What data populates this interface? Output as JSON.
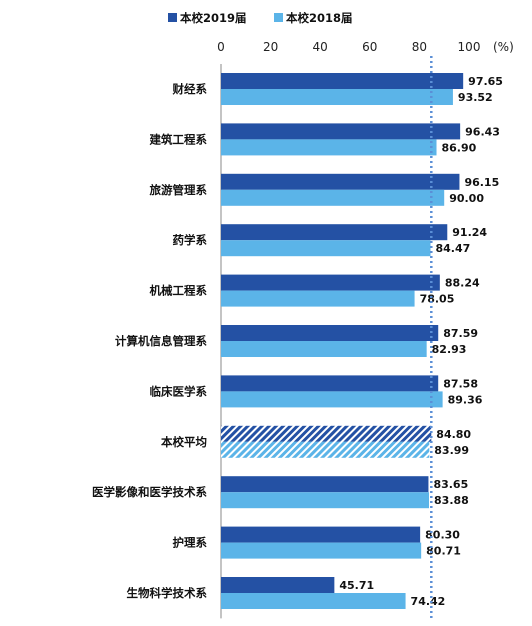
{
  "chart_data": {
    "type": "bar",
    "orientation": "horizontal",
    "unit_label": "(%)",
    "xlim": [
      0,
      100
    ],
    "ticks": [
      "0",
      "20",
      "40",
      "60",
      "80",
      "100"
    ],
    "legend_position": "top",
    "colors": {
      "2019": "#2451a4",
      "2018": "#5bb4e8",
      "reference_line": "#5b8fd6"
    },
    "series": [
      {
        "name": "本校2019届",
        "color": "#2451a4"
      },
      {
        "name": "本校2018届",
        "color": "#5bb4e8"
      }
    ],
    "categories": [
      "财经系",
      "建筑工程系",
      "旅游管理系",
      "药学系",
      "机械工程系",
      "计算机信息管理系",
      "临床医学系",
      "本校平均",
      "医学影像和医学技术系",
      "护理系",
      "生物科学技术系"
    ],
    "values_2019": [
      97.65,
      96.43,
      96.15,
      91.24,
      88.24,
      87.59,
      87.58,
      84.8,
      83.65,
      80.3,
      45.71
    ],
    "values_2018": [
      93.52,
      86.9,
      90.0,
      84.47,
      78.05,
      82.93,
      89.36,
      83.99,
      83.88,
      80.71,
      74.42
    ],
    "labels_2019": [
      "97.65",
      "96.43",
      "96.15",
      "91.24",
      "88.24",
      "87.59",
      "87.58",
      "84.80",
      "83.65",
      "80.30",
      "45.71"
    ],
    "labels_2018": [
      "93.52",
      "86.90",
      "90.00",
      "84.47",
      "78.05",
      "82.93",
      "89.36",
      "83.99",
      "83.88",
      "80.71",
      "74.42"
    ],
    "highlight_category": "本校平均",
    "reference_line_value": 84.8,
    "grid": false
  }
}
